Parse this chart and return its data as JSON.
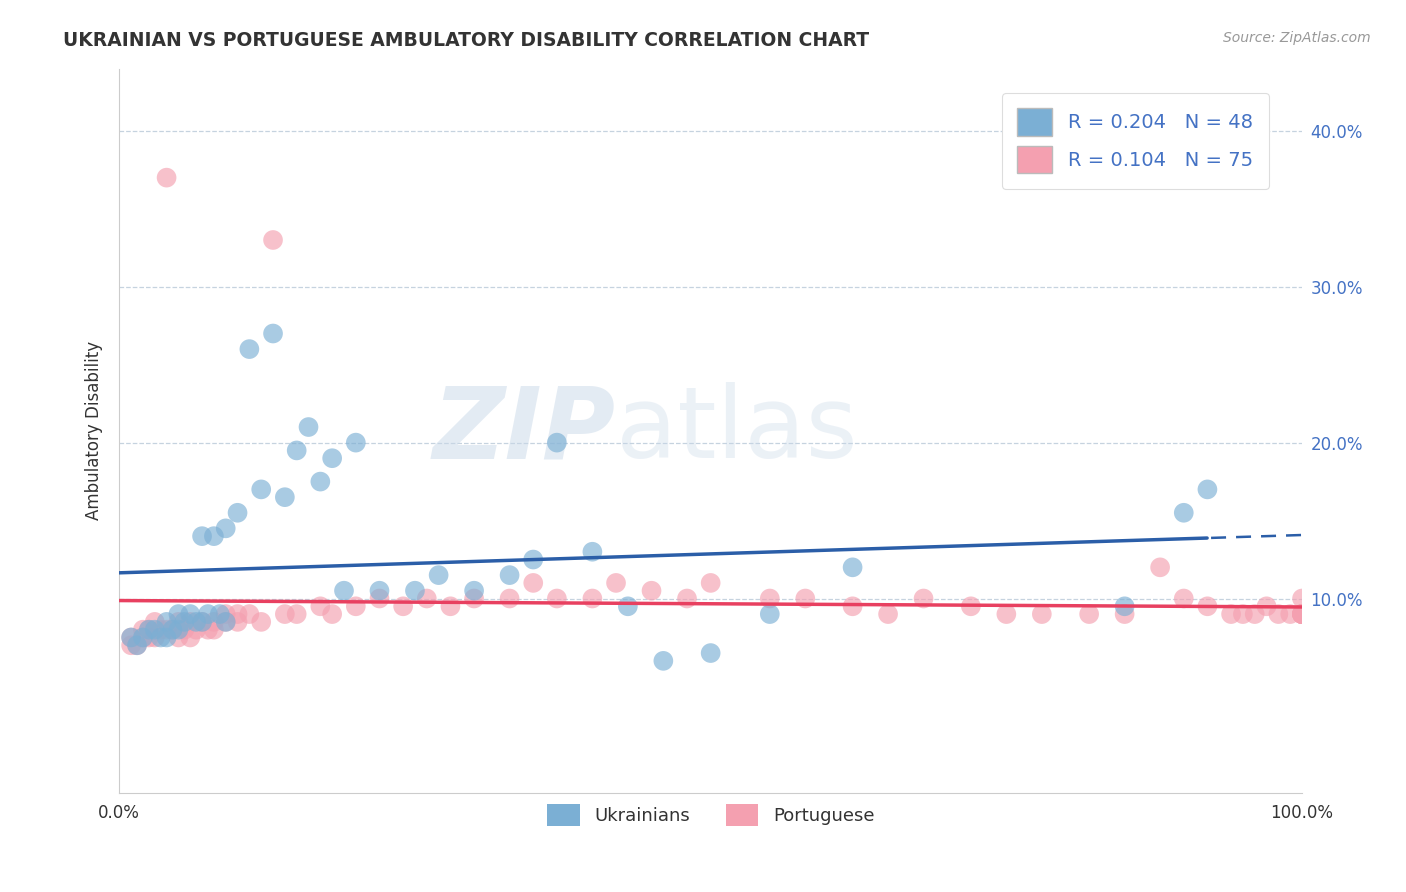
{
  "title": "UKRAINIAN VS PORTUGUESE AMBULATORY DISABILITY CORRELATION CHART",
  "source": "Source: ZipAtlas.com",
  "ylabel": "Ambulatory Disability",
  "legend_label1": "Ukrainians",
  "legend_label2": "Portuguese",
  "r1": 0.204,
  "n1": 48,
  "r2": 0.104,
  "n2": 75,
  "watermark_zip": "ZIP",
  "watermark_atlas": "atlas",
  "color_ukrainian": "#7BAFD4",
  "color_ukrainian_edge": "#5A9AC5",
  "color_portuguese": "#F4A0B0",
  "color_portuguese_edge": "#E8809A",
  "color_line_ukrainian": "#2B5EA8",
  "color_line_portuguese": "#E84060",
  "ytick_values": [
    0.0,
    0.1,
    0.2,
    0.3,
    0.4
  ],
  "ytick_right_labels": [
    "",
    "10.0%",
    "20.0%",
    "30.0%",
    "40.0%"
  ],
  "xlim": [
    0.0,
    1.0
  ],
  "ylim": [
    -0.025,
    0.44
  ],
  "ukrainians_x": [
    0.01,
    0.015,
    0.02,
    0.025,
    0.03,
    0.035,
    0.04,
    0.04,
    0.045,
    0.05,
    0.05,
    0.055,
    0.06,
    0.065,
    0.07,
    0.07,
    0.075,
    0.08,
    0.085,
    0.09,
    0.09,
    0.1,
    0.11,
    0.12,
    0.13,
    0.14,
    0.15,
    0.16,
    0.17,
    0.18,
    0.19,
    0.2,
    0.22,
    0.25,
    0.27,
    0.3,
    0.33,
    0.35,
    0.37,
    0.4,
    0.43,
    0.46,
    0.5,
    0.55,
    0.62,
    0.85,
    0.9,
    0.92
  ],
  "ukrainians_y": [
    0.075,
    0.07,
    0.075,
    0.08,
    0.08,
    0.075,
    0.075,
    0.085,
    0.08,
    0.08,
    0.09,
    0.085,
    0.09,
    0.085,
    0.14,
    0.085,
    0.09,
    0.14,
    0.09,
    0.145,
    0.085,
    0.155,
    0.26,
    0.17,
    0.27,
    0.165,
    0.195,
    0.21,
    0.175,
    0.19,
    0.105,
    0.2,
    0.105,
    0.105,
    0.115,
    0.105,
    0.115,
    0.125,
    0.2,
    0.13,
    0.095,
    0.06,
    0.065,
    0.09,
    0.12,
    0.095,
    0.155,
    0.17
  ],
  "portuguese_x": [
    0.01,
    0.01,
    0.015,
    0.02,
    0.02,
    0.025,
    0.025,
    0.03,
    0.03,
    0.035,
    0.04,
    0.04,
    0.045,
    0.05,
    0.05,
    0.055,
    0.06,
    0.06,
    0.065,
    0.07,
    0.075,
    0.08,
    0.08,
    0.09,
    0.09,
    0.1,
    0.1,
    0.11,
    0.12,
    0.13,
    0.14,
    0.15,
    0.17,
    0.18,
    0.2,
    0.22,
    0.24,
    0.26,
    0.28,
    0.3,
    0.33,
    0.35,
    0.37,
    0.4,
    0.42,
    0.45,
    0.48,
    0.5,
    0.55,
    0.58,
    0.62,
    0.65,
    0.68,
    0.72,
    0.75,
    0.78,
    0.82,
    0.85,
    0.88,
    0.9,
    0.92,
    0.94,
    0.95,
    0.96,
    0.97,
    0.98,
    0.99,
    1.0,
    1.0,
    1.0,
    1.0,
    1.0,
    1.0,
    1.0,
    1.0
  ],
  "portuguese_y": [
    0.07,
    0.075,
    0.07,
    0.075,
    0.08,
    0.075,
    0.08,
    0.075,
    0.085,
    0.08,
    0.08,
    0.37,
    0.08,
    0.075,
    0.085,
    0.08,
    0.075,
    0.085,
    0.08,
    0.085,
    0.08,
    0.085,
    0.08,
    0.085,
    0.09,
    0.09,
    0.085,
    0.09,
    0.085,
    0.33,
    0.09,
    0.09,
    0.095,
    0.09,
    0.095,
    0.1,
    0.095,
    0.1,
    0.095,
    0.1,
    0.1,
    0.11,
    0.1,
    0.1,
    0.11,
    0.105,
    0.1,
    0.11,
    0.1,
    0.1,
    0.095,
    0.09,
    0.1,
    0.095,
    0.09,
    0.09,
    0.09,
    0.09,
    0.12,
    0.1,
    0.095,
    0.09,
    0.09,
    0.09,
    0.095,
    0.09,
    0.09,
    0.09,
    0.09,
    0.09,
    0.09,
    0.09,
    0.09,
    0.09,
    0.1
  ],
  "grid_color": "#B8C8D8",
  "spine_color": "#CCCCCC",
  "title_color": "#333333",
  "source_color": "#999999",
  "tick_label_color": "#333333",
  "right_tick_color": "#4472C4",
  "legend_text_color": "#4472C4"
}
